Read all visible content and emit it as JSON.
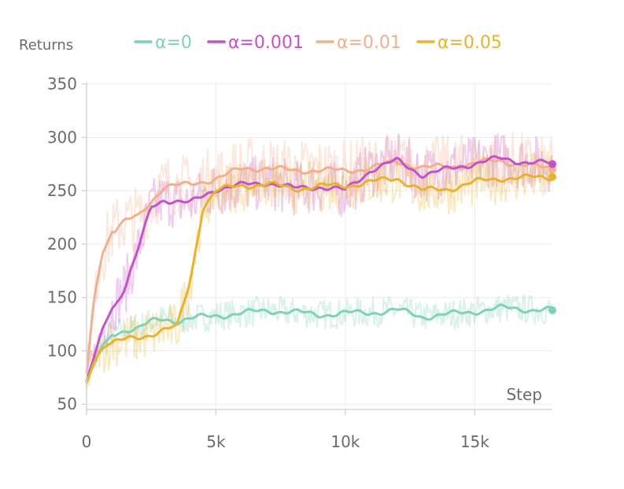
{
  "chart_data": {
    "type": "line",
    "title": "",
    "ylabel": "Returns",
    "xlabel": "Step",
    "xlim": [
      0,
      18000
    ],
    "ylim": [
      45,
      352
    ],
    "x_ticks": [
      0,
      5000,
      10000,
      15000
    ],
    "x_tick_labels": [
      "0",
      "5k",
      "10k",
      "15k"
    ],
    "y_ticks": [
      50,
      100,
      150,
      200,
      250,
      300,
      350
    ],
    "y_tick_labels": [
      "50",
      "100",
      "150",
      "200",
      "250",
      "300",
      "350"
    ],
    "grid": true,
    "legend_position": "top",
    "series": [
      {
        "name": "α=0",
        "color": "#7fd1b9",
        "x": [
          0,
          300,
          600,
          1000,
          1500,
          2000,
          2500,
          3000,
          3500,
          4000,
          5000,
          6000,
          7000,
          8000,
          9000,
          10000,
          11000,
          12000,
          13000,
          14000,
          15000,
          16000,
          17000,
          18000
        ],
        "y": [
          72,
          88,
          105,
          115,
          120,
          121,
          127,
          130,
          128,
          130,
          133,
          135,
          138,
          136,
          134,
          135,
          136,
          138,
          132,
          134,
          137,
          140,
          139,
          138
        ]
      },
      {
        "name": "α=0.001",
        "color": "#c452c9",
        "x": [
          0,
          300,
          600,
          1000,
          1500,
          2000,
          2500,
          3000,
          3500,
          4000,
          5000,
          6000,
          7000,
          8000,
          9000,
          10000,
          11000,
          12000,
          13000,
          14000,
          15000,
          16000,
          17000,
          18000
        ],
        "y": [
          72,
          95,
          120,
          140,
          160,
          195,
          235,
          242,
          240,
          238,
          252,
          255,
          258,
          252,
          254,
          250,
          270,
          278,
          265,
          270,
          276,
          280,
          277,
          275
        ]
      },
      {
        "name": "α=0.01",
        "color": "#f0b08e",
        "x": [
          0,
          300,
          600,
          1000,
          1500,
          2000,
          2500,
          3000,
          3500,
          4000,
          5000,
          6000,
          7000,
          8000,
          9000,
          10000,
          11000,
          12000,
          13000,
          14000,
          15000,
          16000,
          17000,
          18000
        ],
        "y": [
          80,
          150,
          190,
          212,
          222,
          225,
          240,
          255,
          255,
          255,
          262,
          270,
          272,
          268,
          270,
          268,
          272,
          277,
          272,
          272,
          276,
          278,
          274,
          270
        ]
      },
      {
        "name": "α=0.05",
        "color": "#e8b22c",
        "x": [
          0,
          300,
          600,
          1000,
          1500,
          2000,
          2500,
          3000,
          3500,
          4000,
          4500,
          5000,
          6000,
          7000,
          8000,
          9000,
          10000,
          11000,
          12000,
          13000,
          14000,
          15000,
          16000,
          17000,
          18000
        ],
        "y": [
          70,
          90,
          102,
          108,
          110,
          112,
          116,
          120,
          122,
          165,
          235,
          250,
          255,
          256,
          252,
          254,
          255,
          258,
          262,
          250,
          252,
          258,
          262,
          262,
          263
        ]
      }
    ]
  }
}
